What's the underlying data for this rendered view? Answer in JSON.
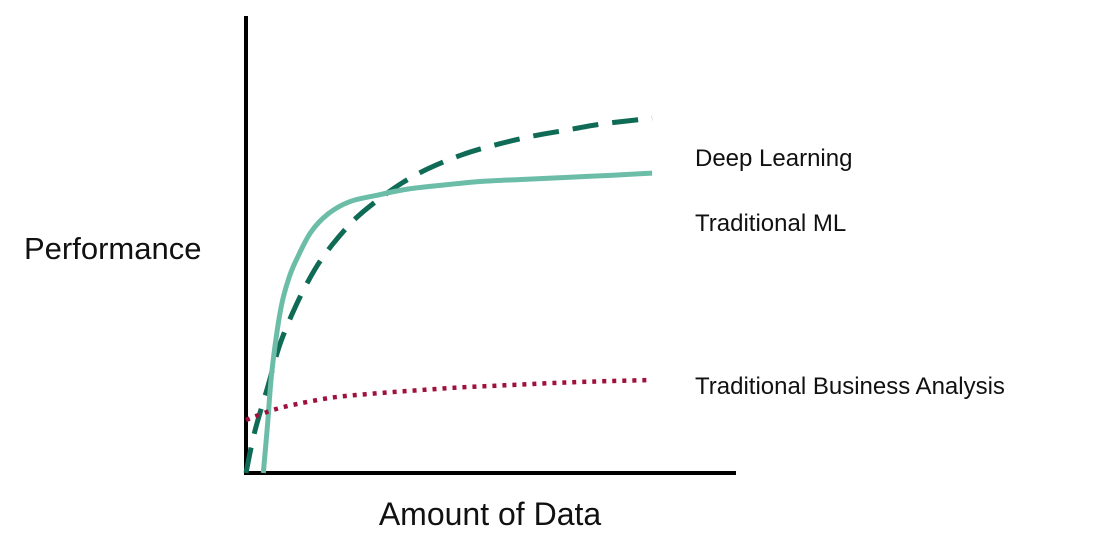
{
  "chart_data": {
    "type": "line",
    "title": "",
    "xlabel": "Amount of Data",
    "ylabel": "Performance",
    "xlim": [
      0,
      100
    ],
    "ylim": [
      0,
      100
    ],
    "grid": false,
    "legend_position": "right",
    "series": [
      {
        "name": "Deep Learning",
        "style": "dashed",
        "color": "#0f6b55",
        "x": [
          0,
          2,
          5,
          8,
          12,
          16,
          20,
          25,
          30,
          36,
          42,
          50,
          58,
          66,
          74,
          82,
          90,
          94
        ],
        "y": [
          0,
          10,
          21,
          32,
          42,
          50,
          56,
          62,
          66.5,
          71,
          74.5,
          78,
          80.5,
          82.5,
          84,
          85.5,
          86.5,
          87
        ]
      },
      {
        "name": "Traditional ML",
        "style": "solid",
        "color": "#6cbda8",
        "x": [
          4,
          5,
          6,
          8,
          10,
          12,
          15,
          19,
          24,
          30,
          37,
          45,
          55,
          65,
          75,
          85,
          94
        ],
        "y": [
          0,
          12,
          25,
          40,
          48,
          53,
          59,
          63.5,
          66.5,
          68,
          69.5,
          70.5,
          71.5,
          72,
          72.5,
          73,
          73.5
        ]
      },
      {
        "name": "Traditional Business Analysis",
        "style": "dotted",
        "color": "#a0103c",
        "x": [
          0,
          5,
          10,
          20,
          30,
          40,
          50,
          60,
          70,
          80,
          94
        ],
        "y": [
          13,
          15,
          16.5,
          18.5,
          19.5,
          20.3,
          21,
          21.5,
          22,
          22.4,
          22.8
        ]
      }
    ]
  }
}
